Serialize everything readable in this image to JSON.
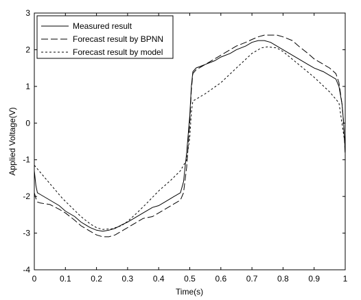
{
  "chart_data": {
    "type": "line",
    "xlabel": "Time(s)",
    "ylabel": "Applied Voltage(V)",
    "xlim": [
      0,
      1
    ],
    "ylim": [
      -4,
      3
    ],
    "xticks": [
      0,
      0.1,
      0.2,
      0.3,
      0.4,
      0.5,
      0.6,
      0.7,
      0.8,
      0.9,
      1
    ],
    "xtick_labels": [
      "0",
      "0.1",
      "0.2",
      "0.3",
      "0.4",
      "0.5",
      "0.6",
      "0.7",
      "0.8",
      "0.9",
      "1"
    ],
    "yticks": [
      -4,
      -3,
      -2,
      -1,
      0,
      1,
      2,
      3
    ],
    "ytick_labels": [
      "-4",
      "-3",
      "-2",
      "-1",
      "0",
      "1",
      "2",
      "3"
    ],
    "grid": false,
    "legend_position": "top-left",
    "series": [
      {
        "name": "Measured result",
        "style": "solid",
        "x": [
          0,
          0.005,
          0.01,
          0.02,
          0.05,
          0.08,
          0.1,
          0.13,
          0.15,
          0.18,
          0.2,
          0.22,
          0.24,
          0.26,
          0.28,
          0.3,
          0.32,
          0.35,
          0.38,
          0.4,
          0.42,
          0.45,
          0.47,
          0.48,
          0.49,
          0.5,
          0.505,
          0.51,
          0.52,
          0.55,
          0.58,
          0.6,
          0.63,
          0.65,
          0.68,
          0.7,
          0.72,
          0.74,
          0.76,
          0.78,
          0.8,
          0.83,
          0.85,
          0.88,
          0.9,
          0.93,
          0.95,
          0.97,
          0.98,
          0.99,
          0.995,
          1
        ],
        "y": [
          -1.3,
          -1.7,
          -1.9,
          -1.95,
          -2.1,
          -2.25,
          -2.4,
          -2.55,
          -2.7,
          -2.85,
          -2.92,
          -2.95,
          -2.92,
          -2.87,
          -2.78,
          -2.7,
          -2.6,
          -2.45,
          -2.3,
          -2.25,
          -2.15,
          -2.0,
          -1.9,
          -1.6,
          -0.8,
          0.2,
          1.0,
          1.4,
          1.5,
          1.6,
          1.7,
          1.8,
          1.9,
          2.0,
          2.1,
          2.2,
          2.25,
          2.25,
          2.2,
          2.1,
          2.0,
          1.85,
          1.75,
          1.6,
          1.5,
          1.4,
          1.3,
          1.2,
          1.0,
          0.5,
          0.0,
          -0.8
        ]
      },
      {
        "name": "Forecast result by BPNN",
        "style": "dashed",
        "x": [
          0,
          0.005,
          0.01,
          0.02,
          0.05,
          0.08,
          0.1,
          0.13,
          0.15,
          0.18,
          0.2,
          0.22,
          0.24,
          0.26,
          0.28,
          0.3,
          0.32,
          0.35,
          0.38,
          0.4,
          0.42,
          0.45,
          0.47,
          0.48,
          0.49,
          0.5,
          0.505,
          0.51,
          0.52,
          0.55,
          0.58,
          0.6,
          0.63,
          0.65,
          0.68,
          0.7,
          0.72,
          0.74,
          0.76,
          0.78,
          0.8,
          0.83,
          0.85,
          0.88,
          0.9,
          0.93,
          0.95,
          0.97,
          0.98,
          0.99,
          0.995,
          1
        ],
        "y": [
          -1.9,
          -2.05,
          -2.15,
          -2.18,
          -2.22,
          -2.35,
          -2.45,
          -2.65,
          -2.8,
          -2.95,
          -3.05,
          -3.1,
          -3.1,
          -3.05,
          -2.95,
          -2.85,
          -2.75,
          -2.6,
          -2.55,
          -2.45,
          -2.35,
          -2.2,
          -2.1,
          -1.9,
          -1.2,
          0.0,
          0.9,
          1.35,
          1.45,
          1.6,
          1.75,
          1.85,
          2.0,
          2.1,
          2.2,
          2.28,
          2.35,
          2.4,
          2.4,
          2.4,
          2.35,
          2.25,
          2.1,
          1.9,
          1.75,
          1.6,
          1.5,
          1.35,
          1.1,
          0.5,
          0.0,
          -0.9
        ]
      },
      {
        "name": "Forecast result by model",
        "style": "dotted",
        "x": [
          0,
          0.03,
          0.06,
          0.09,
          0.12,
          0.15,
          0.18,
          0.2,
          0.22,
          0.25,
          0.28,
          0.3,
          0.33,
          0.36,
          0.4,
          0.44,
          0.47,
          0.49,
          0.5,
          0.505,
          0.51,
          0.55,
          0.6,
          0.65,
          0.7,
          0.73,
          0.75,
          0.78,
          0.8,
          0.85,
          0.9,
          0.95,
          0.98,
          1
        ],
        "y": [
          -1.15,
          -1.45,
          -1.75,
          -2.05,
          -2.3,
          -2.55,
          -2.75,
          -2.85,
          -2.9,
          -2.88,
          -2.8,
          -2.68,
          -2.45,
          -2.2,
          -1.85,
          -1.55,
          -1.3,
          -1.0,
          -0.4,
          0.3,
          0.6,
          0.8,
          1.1,
          1.5,
          1.9,
          2.05,
          2.08,
          2.05,
          1.95,
          1.6,
          1.25,
          0.85,
          0.55,
          -0.6
        ]
      }
    ]
  }
}
